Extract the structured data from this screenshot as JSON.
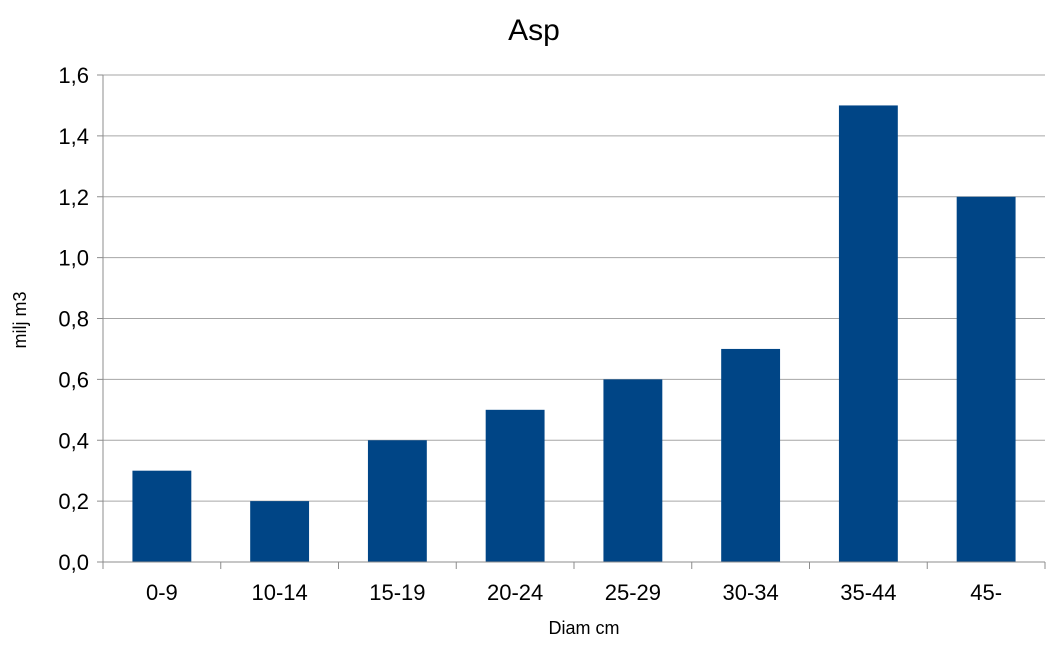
{
  "chart_data": {
    "type": "bar",
    "title": "Asp",
    "xlabel": "Diam cm",
    "ylabel": "milj m3",
    "categories": [
      "0-9",
      "10-14",
      "15-19",
      "20-24",
      "25-29",
      "30-34",
      "35-44",
      "45-"
    ],
    "series": [
      {
        "values": [
          0.3,
          0.2,
          0.4,
          0.5,
          0.6,
          0.7,
          1.5,
          1.2
        ]
      }
    ],
    "ylim": [
      0,
      1.6
    ],
    "yticks": [
      "0,0",
      "0,2",
      "0,4",
      "0,6",
      "0,8",
      "1,0",
      "1,2",
      "1,4",
      "1,6"
    ],
    "grid": true,
    "legend": "none",
    "colors": {
      "bar": "#004586"
    }
  }
}
